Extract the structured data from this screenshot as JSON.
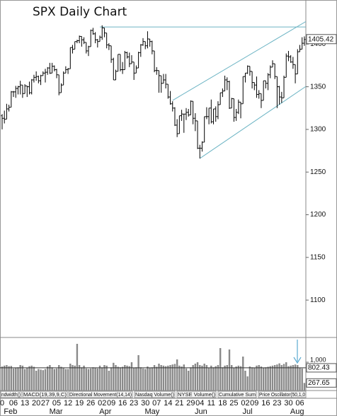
{
  "chart_data": [
    {
      "type": "ohlc",
      "title": "SPX Daily Chart",
      "categories": [
        "0",
        null,
        null,
        null,
        null,
        "06",
        null,
        null,
        null,
        null,
        "13",
        null,
        null,
        null,
        null,
        "20",
        null,
        null,
        null,
        "27",
        null,
        null,
        null,
        null,
        "05",
        null,
        null,
        null,
        null,
        "12",
        null,
        null,
        null,
        null,
        "19",
        null,
        null,
        null,
        null,
        "26",
        null,
        null,
        null,
        null,
        "02",
        null,
        null,
        null,
        "09",
        null,
        null,
        null,
        null,
        "16",
        null,
        null,
        null,
        null,
        "23",
        null,
        null,
        null,
        null,
        "30",
        null,
        null,
        null,
        null,
        "07",
        null,
        null,
        null,
        null,
        "14",
        null,
        null,
        null,
        null,
        "21",
        null,
        null,
        null,
        null,
        "29",
        null,
        null,
        null,
        "04",
        null,
        null,
        null,
        null,
        "11",
        null,
        null,
        null,
        null,
        "18",
        null,
        null,
        null,
        null,
        "25",
        null,
        null,
        null,
        null,
        "02",
        null,
        null,
        null,
        "09",
        null,
        null,
        null,
        null,
        "16",
        null,
        null,
        null,
        null,
        "23",
        null,
        null,
        null,
        null,
        "30",
        null,
        null,
        null,
        null,
        "06",
        null,
        null
      ],
      "months": [
        null,
        null,
        "Feb",
        null,
        null,
        null,
        null,
        null,
        null,
        null,
        null,
        null,
        null,
        null,
        null,
        null,
        null,
        null,
        null,
        null,
        null,
        null,
        "Mar",
        null,
        null,
        null,
        null,
        null,
        null,
        null,
        null,
        null,
        null,
        null,
        null,
        null,
        null,
        null,
        null,
        null,
        null,
        null,
        null,
        null,
        "Apr",
        null,
        null,
        null,
        null,
        null,
        null,
        null,
        null,
        null,
        null,
        null,
        null,
        null,
        null,
        null,
        null,
        null,
        null,
        null,
        "May",
        null,
        null,
        null,
        null,
        null,
        null,
        null,
        null,
        null,
        null,
        null,
        null,
        null,
        null,
        null,
        null,
        null,
        null,
        null,
        null,
        null,
        "Jun",
        null,
        null,
        null,
        null,
        null,
        null,
        null,
        null,
        null,
        null,
        null,
        null,
        null,
        null,
        null,
        null,
        null,
        null,
        null,
        null,
        "Jul",
        null,
        null,
        null,
        null,
        null,
        null,
        null,
        null,
        null,
        null,
        null,
        null,
        null,
        null,
        null,
        null,
        null,
        null,
        null,
        null,
        "Aug",
        null,
        null,
        null,
        null,
        null
      ],
      "open": [
        1316,
        1313,
        1312,
        1324,
        1326,
        1344,
        1344,
        1348,
        1350,
        1352,
        1342,
        1351,
        1350,
        1343,
        1358,
        1361,
        1362,
        1357,
        1363,
        1366,
        1367,
        1372,
        1366,
        1374,
        1370,
        1364,
        1343,
        1352,
        1366,
        1370,
        1371,
        1396,
        1394,
        1403,
        1404,
        1409,
        1405,
        1402,
        1392,
        1397,
        1416,
        1412,
        1405,
        1403,
        1408,
        1419,
        1413,
        1399,
        1398,
        1382,
        1358,
        1368,
        1388,
        1370,
        1370,
        1390,
        1385,
        1377,
        1379,
        1366,
        1372,
        1390,
        1399,
        1403,
        1398,
        1406,
        1403,
        1392,
        1369,
        1369,
        1363,
        1354,
        1358,
        1353,
        1338,
        1330,
        1325,
        1305,
        1295,
        1316,
        1318,
        1318,
        1320,
        1317,
        1333,
        1313,
        1310,
        1278,
        1278,
        1285,
        1315,
        1315,
        1325,
        1309,
        1324,
        1315,
        1329,
        1343,
        1345,
        1358,
        1356,
        1325,
        1336,
        1314,
        1320,
        1332,
        1330,
        1362,
        1366,
        1374,
        1368,
        1355,
        1352,
        1341,
        1342,
        1334,
        1357,
        1354,
        1364,
        1373,
        1377,
        1362,
        1350,
        1338,
        1337,
        1361,
        1386,
        1385,
        1379,
        1376,
        1365,
        1391,
        1394,
        1401
      ],
      "high": [
        1318,
        1322,
        1330,
        1329,
        1345,
        1345,
        1351,
        1351,
        1357,
        1352,
        1353,
        1351,
        1356,
        1359,
        1364,
        1368,
        1363,
        1364,
        1368,
        1371,
        1373,
        1378,
        1378,
        1375,
        1371,
        1364,
        1354,
        1368,
        1374,
        1372,
        1396,
        1399,
        1403,
        1405,
        1410,
        1409,
        1408,
        1402,
        1398,
        1417,
        1419,
        1414,
        1406,
        1410,
        1422,
        1419,
        1413,
        1401,
        1398,
        1384,
        1370,
        1388,
        1388,
        1379,
        1392,
        1391,
        1390,
        1387,
        1379,
        1375,
        1391,
        1400,
        1407,
        1403,
        1415,
        1406,
        1404,
        1392,
        1373,
        1369,
        1363,
        1365,
        1365,
        1353,
        1345,
        1333,
        1326,
        1312,
        1316,
        1323,
        1318,
        1325,
        1324,
        1334,
        1333,
        1319,
        1310,
        1282,
        1286,
        1315,
        1326,
        1325,
        1335,
        1324,
        1327,
        1333,
        1343,
        1348,
        1363,
        1361,
        1357,
        1337,
        1336,
        1324,
        1335,
        1332,
        1362,
        1366,
        1375,
        1374,
        1368,
        1355,
        1362,
        1346,
        1342,
        1357,
        1357,
        1366,
        1375,
        1381,
        1377,
        1362,
        1351,
        1344,
        1363,
        1389,
        1392,
        1387,
        1385,
        1376,
        1394,
        1399,
        1408,
        1409
      ],
      "low": [
        1300,
        1307,
        1312,
        1321,
        1326,
        1338,
        1337,
        1341,
        1341,
        1337,
        1342,
        1338,
        1341,
        1341,
        1355,
        1357,
        1354,
        1352,
        1363,
        1355,
        1364,
        1365,
        1366,
        1368,
        1360,
        1340,
        1343,
        1352,
        1366,
        1365,
        1371,
        1389,
        1394,
        1401,
        1401,
        1397,
        1400,
        1389,
        1386,
        1397,
        1411,
        1401,
        1396,
        1403,
        1405,
        1408,
        1395,
        1393,
        1378,
        1358,
        1358,
        1368,
        1368,
        1365,
        1370,
        1383,
        1373,
        1377,
        1358,
        1366,
        1372,
        1385,
        1398,
        1394,
        1395,
        1397,
        1388,
        1367,
        1364,
        1343,
        1343,
        1354,
        1348,
        1336,
        1329,
        1321,
        1304,
        1291,
        1295,
        1310,
        1296,
        1311,
        1315,
        1317,
        1306,
        1298,
        1277,
        1266,
        1274,
        1285,
        1312,
        1306,
        1307,
        1306,
        1309,
        1312,
        1329,
        1338,
        1345,
        1346,
        1324,
        1325,
        1309,
        1310,
        1318,
        1313,
        1330,
        1355,
        1365,
        1363,
        1348,
        1346,
        1337,
        1336,
        1325,
        1334,
        1348,
        1346,
        1360,
        1373,
        1359,
        1325,
        1329,
        1331,
        1337,
        1361,
        1380,
        1378,
        1371,
        1354,
        1365,
        1391,
        1394,
        1398
      ],
      "close": [
        1313,
        1312,
        1324,
        1326,
        1344,
        1344,
        1348,
        1350,
        1352,
        1342,
        1351,
        1350,
        1343,
        1358,
        1361,
        1362,
        1357,
        1363,
        1366,
        1367,
        1372,
        1366,
        1374,
        1370,
        1364,
        1343,
        1352,
        1366,
        1370,
        1371,
        1396,
        1394,
        1403,
        1404,
        1409,
        1405,
        1402,
        1392,
        1397,
        1416,
        1412,
        1405,
        1403,
        1408,
        1419,
        1413,
        1399,
        1398,
        1382,
        1358,
        1368,
        1388,
        1370,
        1370,
        1390,
        1385,
        1377,
        1379,
        1366,
        1372,
        1390,
        1399,
        1403,
        1398,
        1406,
        1403,
        1392,
        1369,
        1369,
        1363,
        1354,
        1358,
        1353,
        1338,
        1330,
        1325,
        1305,
        1295,
        1316,
        1318,
        1318,
        1320,
        1317,
        1333,
        1313,
        1310,
        1278,
        1278,
        1285,
        1315,
        1315,
        1325,
        1309,
        1324,
        1315,
        1329,
        1343,
        1345,
        1358,
        1356,
        1325,
        1336,
        1314,
        1320,
        1332,
        1330,
        1362,
        1366,
        1374,
        1368,
        1355,
        1352,
        1341,
        1342,
        1334,
        1357,
        1354,
        1364,
        1373,
        1377,
        1362,
        1350,
        1338,
        1337,
        1361,
        1386,
        1385,
        1379,
        1376,
        1365,
        1391,
        1394,
        1401,
        1405.42
      ],
      "color": "#000000",
      "ylim": [
        1057,
        1450
      ],
      "yticks": [
        1100,
        1150,
        1200,
        1250,
        1300,
        1350,
        1400
      ],
      "trendlines": [
        {
          "x": [
            43,
            134
          ],
          "y": [
            1420,
            1420
          ]
        },
        {
          "x": [
            75,
            134
          ],
          "y": [
            1334,
            1427
          ]
        },
        {
          "x": [
            87,
            134
          ],
          "y": [
            1266,
            1351
          ]
        }
      ],
      "trendline_color": "#6cb4c4"
    },
    {
      "type": "bar",
      "values": [
        850,
        880,
        900,
        860,
        870,
        780,
        800,
        820,
        900,
        880,
        760,
        800,
        860,
        880,
        840,
        700,
        760,
        740,
        720,
        760,
        850,
        900,
        820,
        760,
        780,
        900,
        840,
        800,
        760,
        760,
        950,
        900,
        880,
        1650,
        900,
        820,
        880,
        780,
        760,
        780,
        820,
        800,
        780,
        880,
        820,
        900,
        880,
        700,
        820,
        980,
        900,
        840,
        820,
        840,
        900,
        880,
        860,
        1000,
        800,
        820,
        1250,
        820,
        780,
        760,
        850,
        800,
        820,
        900,
        840,
        950,
        900,
        880,
        860,
        880,
        900,
        920,
        940,
        1100,
        880,
        850,
        920,
        780,
        700,
        820,
        900,
        950,
        1000,
        900,
        880,
        950,
        900,
        800,
        880,
        820,
        860,
        900,
        1500,
        820,
        880,
        900,
        1450,
        900,
        800,
        850,
        880,
        860,
        1200,
        700,
        500,
        850,
        820,
        800,
        880,
        900,
        850,
        800,
        820,
        840,
        860,
        880,
        900,
        920,
        960,
        900,
        940,
        1000,
        860,
        880,
        900,
        920,
        900,
        800,
        780,
        267.65
      ],
      "color": "#8a8a8a",
      "ma": 802.43,
      "ma_color": "#333333",
      "ylim": [
        0,
        1850
      ],
      "yticks": [
        {
          "value": 1000,
          "label": "1,000"
        }
      ]
    }
  ],
  "indicator_tabs": [
    "ndwidth()",
    "MACD(19,39,9,C)",
    "Directional Movement(14,14)",
    "Nasdaq Volume()",
    "NYSE Volume()",
    "Cumulative Sum",
    "Price Oscillator(50,1,0"
  ]
}
